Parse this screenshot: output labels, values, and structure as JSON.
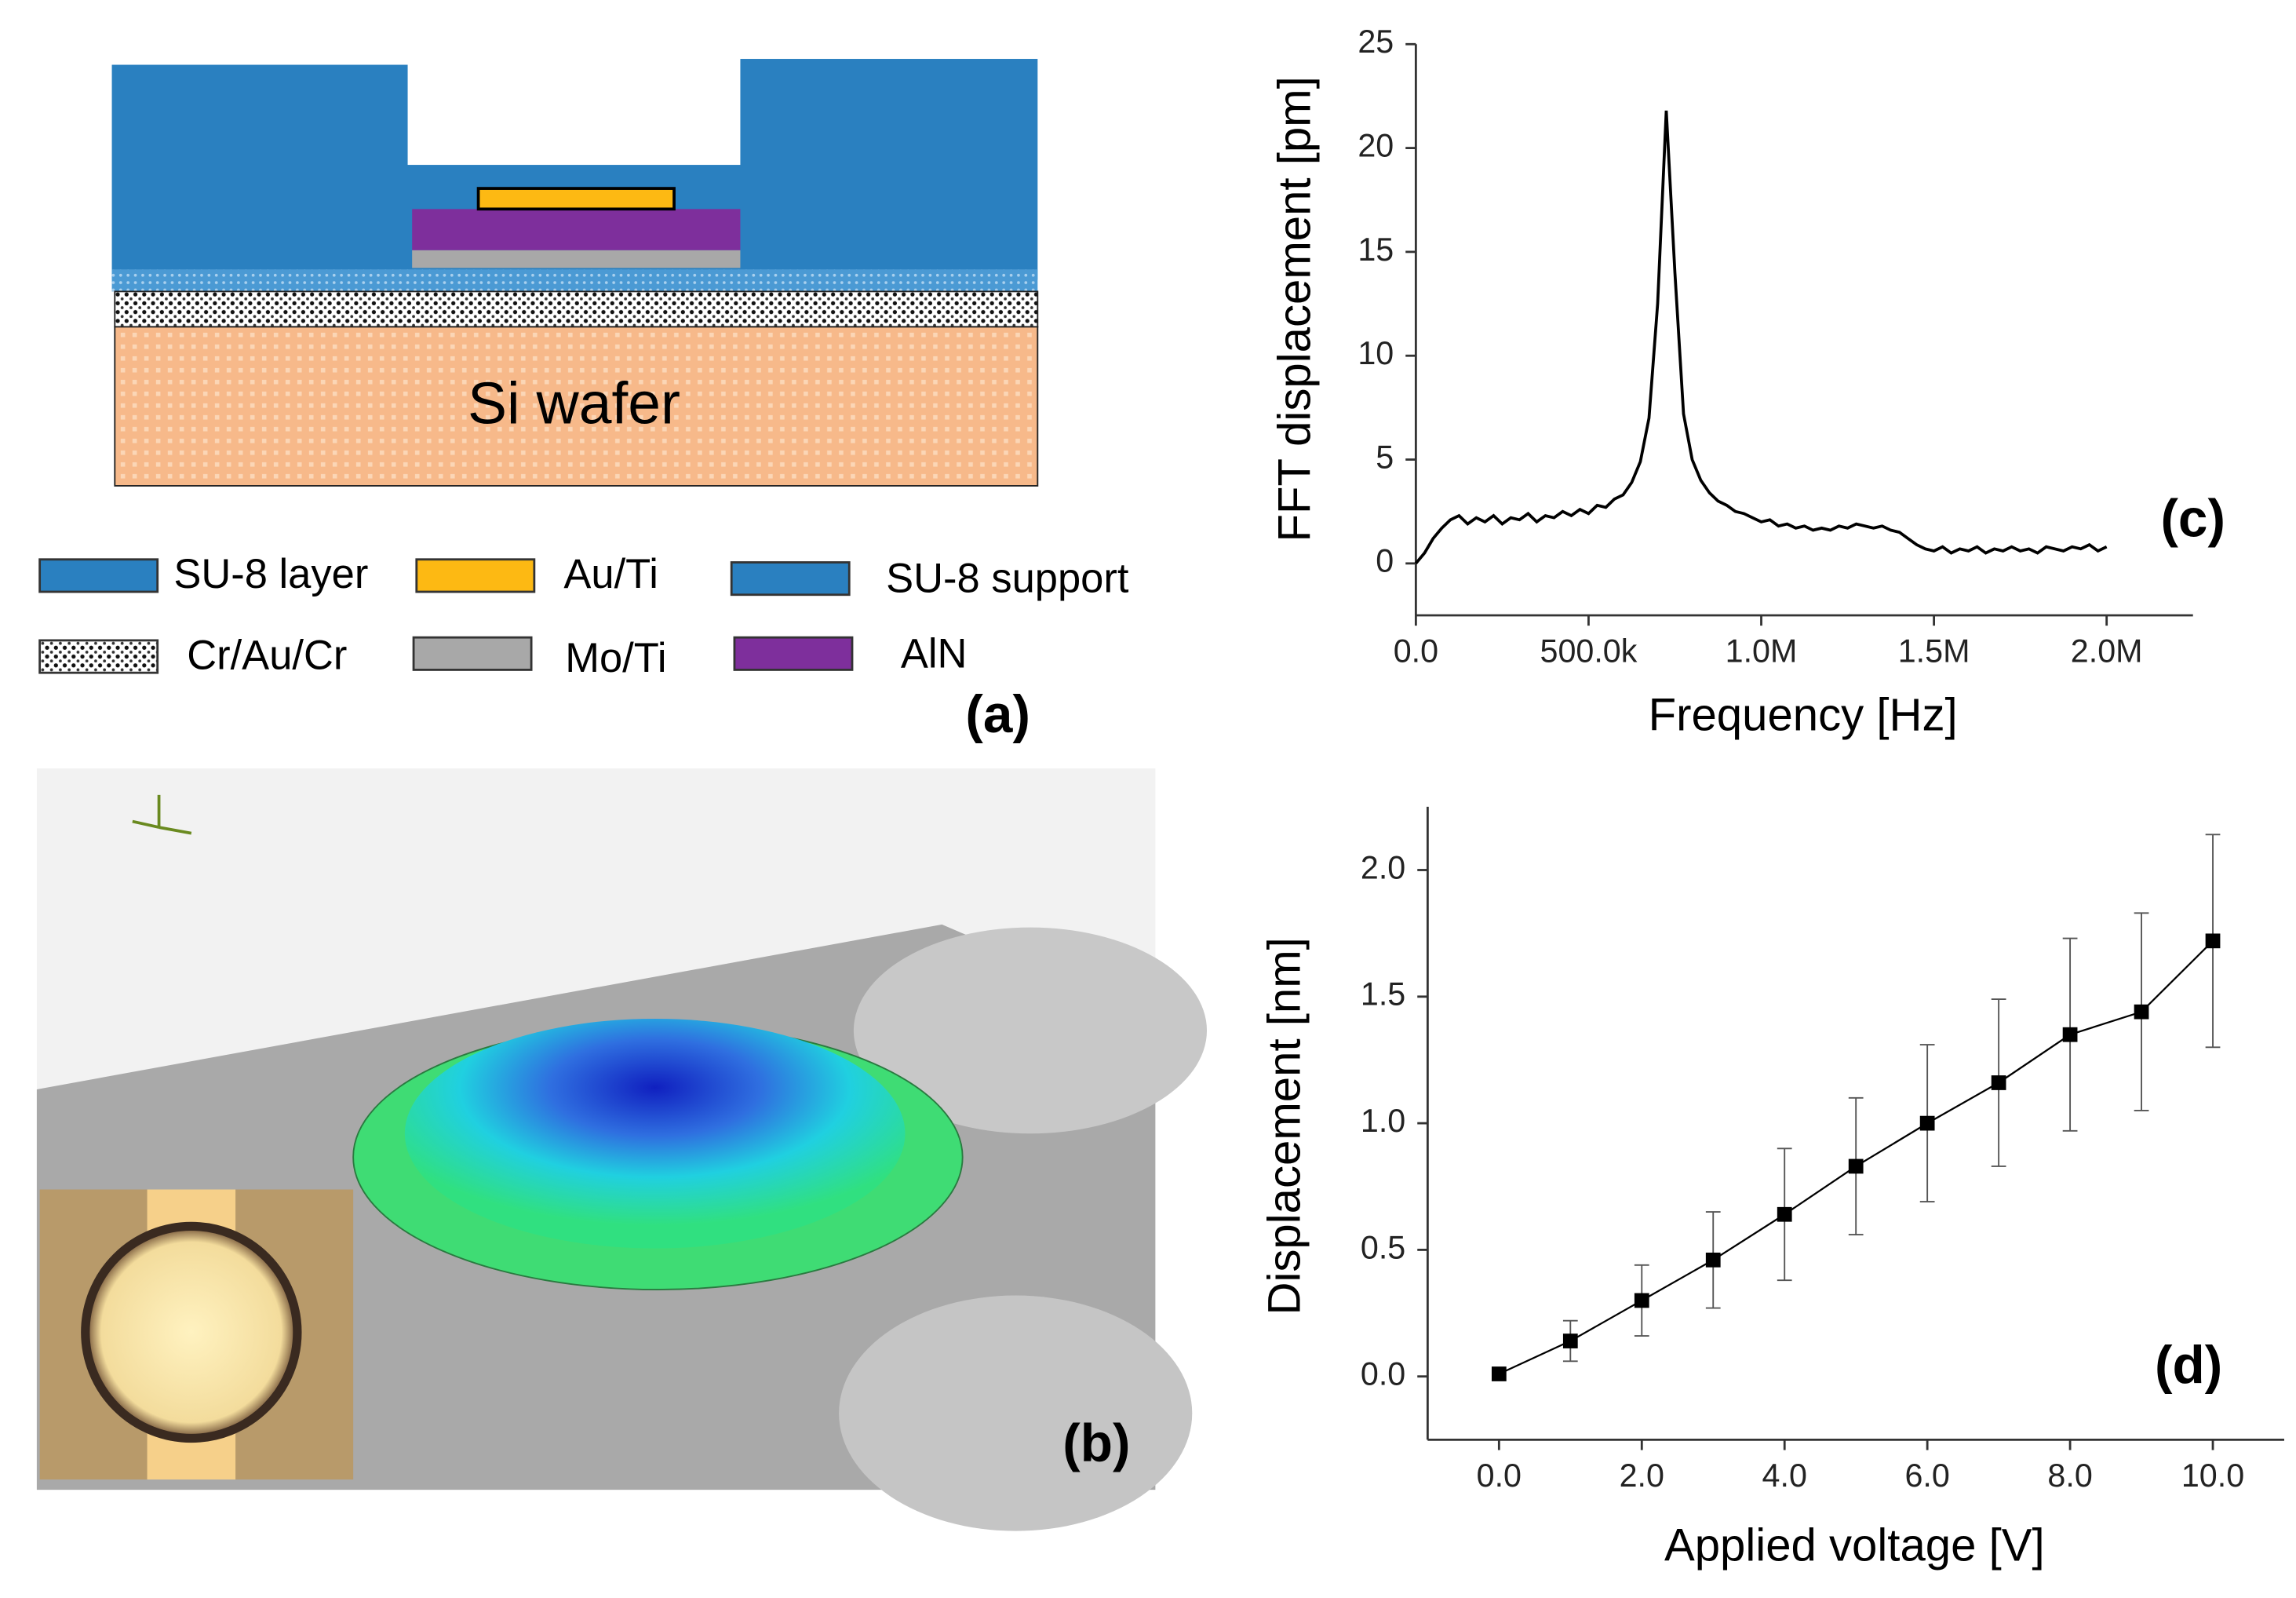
{
  "diagram": {
    "label": "Si wafer",
    "panel_label": "(a)",
    "legend": [
      {
        "name": "SU-8 layer",
        "color": "#2a80c0"
      },
      {
        "name": "Au/Ti",
        "color": "#fdb913"
      },
      {
        "name": "SU-8 support",
        "color": "#2a80c0"
      },
      {
        "name": "Cr/Au/Cr",
        "color": "#ffffff"
      },
      {
        "name": "Mo/Ti",
        "color": "#a8a8a8"
      },
      {
        "name": "AlN",
        "color": "#7e2f9c"
      }
    ]
  },
  "simulation": {
    "panel_label": "(b)"
  },
  "chart_data": [
    {
      "type": "line",
      "panel_label": "(c)",
      "xlabel": "Frequency [Hz]",
      "ylabel": "FFT displacement [pm]",
      "color": "#000000",
      "x": [
        0,
        25000,
        50000,
        75000,
        100000,
        125000,
        150000,
        175000,
        200000,
        225000,
        250000,
        275000,
        300000,
        325000,
        350000,
        375000,
        400000,
        425000,
        450000,
        475000,
        500000,
        525000,
        550000,
        575000,
        600000,
        625000,
        650000,
        675000,
        700000,
        725000,
        750000,
        775000,
        800000,
        825000,
        850000,
        875000,
        900000,
        925000,
        950000,
        975000,
        1000000,
        1025000,
        1050000,
        1075000,
        1100000,
        1125000,
        1150000,
        1175000,
        1200000,
        1225000,
        1250000,
        1275000,
        1300000,
        1325000,
        1350000,
        1375000,
        1400000,
        1425000,
        1450000,
        1475000,
        1500000,
        1525000,
        1550000,
        1575000,
        1600000,
        1625000,
        1650000,
        1675000,
        1700000,
        1725000,
        1750000,
        1775000,
        1800000,
        1825000,
        1850000,
        1875000,
        1900000,
        1925000,
        1950000,
        1975000,
        2000000
      ],
      "values": [
        0,
        0.5,
        1.2,
        1.7,
        2.1,
        2.3,
        1.9,
        2.2,
        2.0,
        2.3,
        1.9,
        2.2,
        2.1,
        2.4,
        2.0,
        2.3,
        2.2,
        2.5,
        2.3,
        2.6,
        2.4,
        2.8,
        2.7,
        3.1,
        3.3,
        3.9,
        4.9,
        7.0,
        12.5,
        21.8,
        14.0,
        7.2,
        5.0,
        4.0,
        3.4,
        3.0,
        2.8,
        2.5,
        2.4,
        2.2,
        2.0,
        2.1,
        1.8,
        1.9,
        1.7,
        1.8,
        1.6,
        1.7,
        1.6,
        1.8,
        1.7,
        1.9,
        1.8,
        1.7,
        1.8,
        1.6,
        1.5,
        1.2,
        0.9,
        0.7,
        0.6,
        0.8,
        0.5,
        0.7,
        0.6,
        0.8,
        0.5,
        0.7,
        0.6,
        0.8,
        0.6,
        0.7,
        0.5,
        0.8,
        0.7,
        0.6,
        0.8,
        0.7,
        0.9,
        0.6,
        0.8
      ],
      "xlim": [
        0,
        2250000
      ],
      "ylim": [
        -2.5,
        25
      ],
      "xticks": [
        {
          "value": 0,
          "label": "0.0"
        },
        {
          "value": 500000,
          "label": "500.0k"
        },
        {
          "value": 1000000,
          "label": "1.0M"
        },
        {
          "value": 1500000,
          "label": "1.5M"
        },
        {
          "value": 2000000,
          "label": "2.0M"
        }
      ],
      "yticks": [
        0,
        5,
        10,
        15,
        20,
        25
      ]
    },
    {
      "type": "errorline",
      "panel_label": "(d)",
      "xlabel": "Applied voltage [V]",
      "ylabel": "Displacement [nm]",
      "color": "#000000",
      "x": [
        0,
        1,
        2,
        3,
        4,
        5,
        6,
        7,
        8,
        9,
        10
      ],
      "values": [
        0.01,
        0.14,
        0.3,
        0.46,
        0.64,
        0.83,
        1.0,
        1.16,
        1.35,
        1.44,
        1.72
      ],
      "errors": [
        0,
        0.08,
        0.14,
        0.19,
        0.26,
        0.27,
        0.31,
        0.33,
        0.38,
        0.39,
        0.42
      ],
      "xlim": [
        -1,
        11
      ],
      "ylim": [
        -0.25,
        2.25
      ],
      "xticks": [
        {
          "value": 0,
          "label": "0.0"
        },
        {
          "value": 2,
          "label": "2.0"
        },
        {
          "value": 4,
          "label": "4.0"
        },
        {
          "value": 6,
          "label": "6.0"
        },
        {
          "value": 8,
          "label": "8.0"
        },
        {
          "value": 10,
          "label": "10.0"
        }
      ],
      "yticks": [
        {
          "value": 0,
          "label": "0.0"
        },
        0.5,
        {
          "value": 1,
          "label": "1.0"
        },
        1.5,
        {
          "value": 2,
          "label": "2.0"
        }
      ]
    }
  ]
}
